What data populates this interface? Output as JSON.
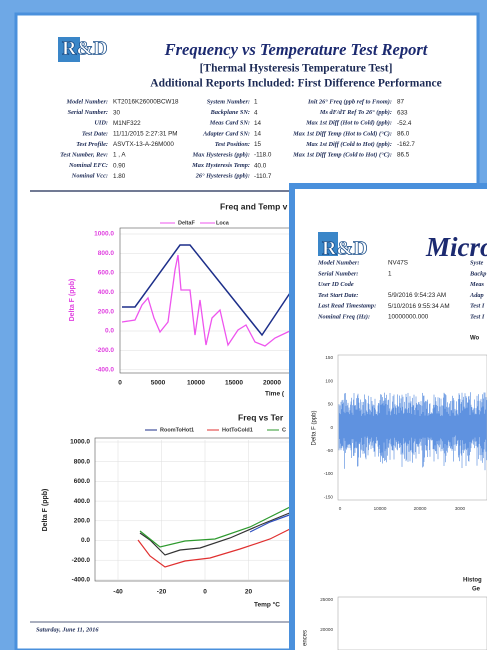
{
  "back": {
    "logo": "R&D",
    "title": "Frequency vs Temperature Test Report",
    "subtitle": "[Thermal Hysteresis Temperature Test]",
    "additional": "Additional Reports Included:  First Difference Performance",
    "info": [
      [
        {
          "label": "Model Number:",
          "value": "KT2016K26000BCW18"
        },
        {
          "label": "Serial Number:",
          "value": "30"
        },
        {
          "label": "UID:",
          "value": "M1NF322"
        },
        {
          "label": "Test Date:",
          "value": "11/11/2015 2:27:31 PM"
        },
        {
          "label": "Test Profile:",
          "value": "ASVTX-13-A-26M000"
        },
        {
          "label": "Test Number, Rev:",
          "value": "1 , A"
        },
        {
          "label": "Nominal EFC:",
          "value": "0.90"
        },
        {
          "label": "Nominal Vcc:",
          "value": "1.80"
        }
      ],
      [
        {
          "label": "System Number:",
          "value": "1"
        },
        {
          "label": "Backplane SN:",
          "value": "4"
        },
        {
          "label": "Meas Card SN:",
          "value": "14"
        },
        {
          "label": "Adapter Card SN:",
          "value": "14"
        },
        {
          "label": "Test Position:",
          "value": "15"
        },
        {
          "label": "Max Hysteresis (ppb):",
          "value": "-118.0"
        },
        {
          "label": "Max Hysteresis Temp:",
          "value": "40.0"
        },
        {
          "label": "26° Hysteresis (ppb):",
          "value": "-110.7"
        }
      ],
      [
        {
          "label": "Init 26° Freq (ppb ref to Fnom):",
          "value": "87"
        },
        {
          "label": "Ms dF/dT Ref To 26° (ppb):",
          "value": "633"
        },
        {
          "label": "Max 1st Diff (Hot to Cold) (ppb):",
          "value": "-52.4"
        },
        {
          "label": "Max 1st Diff Temp (Hot to Cold) (°C):",
          "value": "86.0"
        },
        {
          "label": "Max 1st Diff (Cold to Hot) (ppb):",
          "value": "-162.7"
        },
        {
          "label": "Max 1st Diff Temp (Cold to Hot) (°C):",
          "value": "86.5"
        }
      ]
    ],
    "chart1": {
      "title": "Freq and Temp v",
      "legend": [
        "DeltaF",
        "Loca"
      ],
      "yticks": [
        "1000.0",
        "800.0",
        "600.0",
        "400.0",
        "200.0",
        "0.0",
        "-200.0",
        "-400.0"
      ],
      "xticks": [
        "0",
        "5000",
        "10000",
        "15000",
        "20000"
      ],
      "xlabel": "Time (",
      "ylabel": "Delta F (ppb)"
    },
    "chart2": {
      "title": "Freq vs Ter",
      "legend": [
        "RoomToHot1",
        "HotToCold1",
        "C"
      ],
      "yticks": [
        "1000.0",
        "800.0",
        "600.0",
        "400.0",
        "200.0",
        "0.0",
        "-200.0",
        "-400.0"
      ],
      "xticks": [
        "-40",
        "-20",
        "0",
        "20"
      ],
      "xlabel": "Temp °C",
      "ylabel": "Delta F (ppb)"
    },
    "footer": "Saturday, June 11, 2016"
  },
  "front": {
    "logo": "R&D",
    "title": "Micro",
    "info": [
      {
        "label": "Model Number:",
        "value": "NV47S"
      },
      {
        "label": "Serial Number:",
        "value": "1"
      },
      {
        "label": "User ID Code"
      },
      {
        "label": "Test Start Date:",
        "value": "5/9/2016 9:54:23 AM"
      },
      {
        "label": "Last Read Timestamp:",
        "value": "5/10/2016 9:55:34 AM"
      },
      {
        "label": "Nominal Freq (Hz):",
        "value": "10000000.000"
      }
    ],
    "info2": [
      "Syste",
      "Backp",
      "Meas",
      "Adap",
      "Test I",
      "Test I"
    ],
    "chart": {
      "title": "Wo",
      "yticks": [
        "150",
        "100",
        "50",
        "0",
        "-50",
        "-100",
        "-150"
      ],
      "xticks": [
        "0",
        "10000",
        "20000",
        "3000"
      ],
      "ylabel": "Delta F (ppb)"
    },
    "hist": {
      "title": [
        "Histog",
        "Ge"
      ],
      "yticks": [
        "25000",
        "20000",
        "15000"
      ],
      "ylabel": "ences"
    }
  }
}
